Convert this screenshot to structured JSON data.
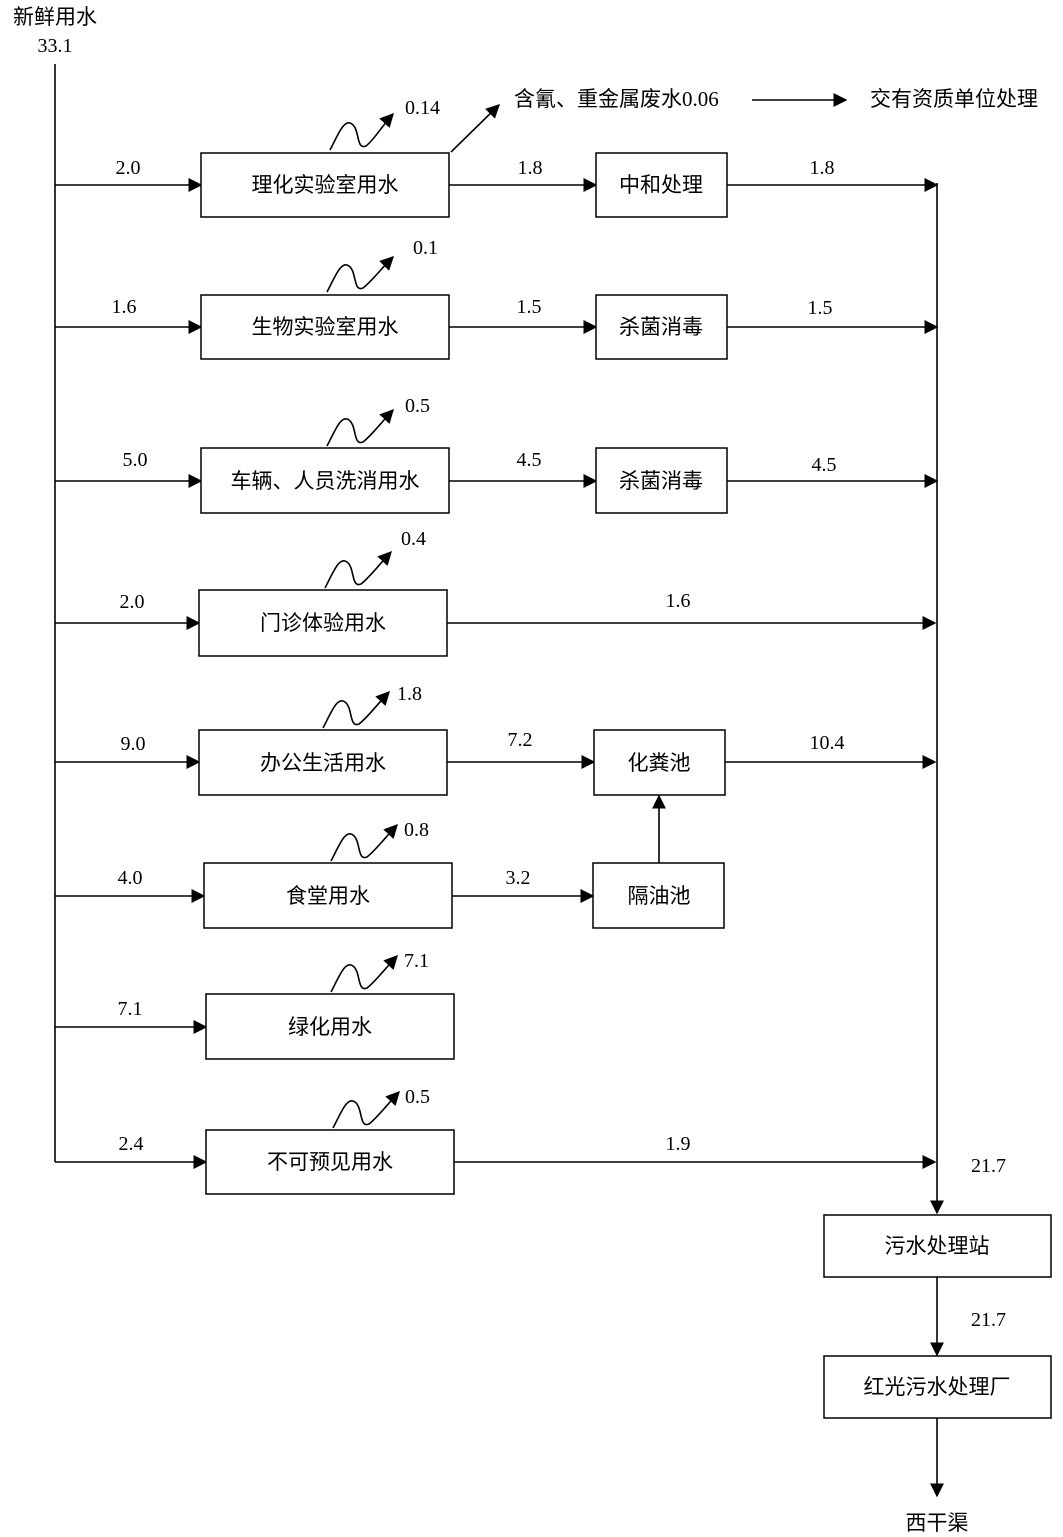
{
  "source": {
    "label": "新鲜用水",
    "value": "33.1"
  },
  "processes": [
    {
      "name": "理化实验室用水",
      "input": "2.0",
      "loss": "0.14",
      "output": "1.8",
      "treatment": "中和处理",
      "treated_output": "1.8"
    },
    {
      "name": "生物实验室用水",
      "input": "1.6",
      "loss": "0.1",
      "output": "1.5",
      "treatment": "杀菌消毒",
      "treated_output": "1.5"
    },
    {
      "name": "车辆、人员洗消用水",
      "input": "5.0",
      "loss": "0.5",
      "output": "4.5",
      "treatment": "杀菌消毒",
      "treated_output": "4.5"
    },
    {
      "name": "门诊体验用水",
      "input": "2.0",
      "loss": "0.4",
      "output": "1.6"
    },
    {
      "name": "办公生活用水",
      "input": "9.0",
      "loss": "1.8",
      "output": "7.2",
      "treatment": "化粪池",
      "treated_output": "10.4"
    },
    {
      "name": "食堂用水",
      "input": "4.0",
      "loss": "0.8",
      "output": "3.2",
      "treatment": "隔油池"
    },
    {
      "name": "绿化用水",
      "input": "7.1",
      "loss": "7.1"
    },
    {
      "name": "不可预见用水",
      "input": "2.4",
      "loss": "0.5",
      "output": "1.9"
    }
  ],
  "hazardous": {
    "label": "含氰、重金属废水0.06",
    "destination": "交有资质单位处理"
  },
  "collector": {
    "total": "21.7"
  },
  "sewage_station": {
    "name": "污水处理站",
    "output": "21.7"
  },
  "municipal_plant": {
    "name": "红光污水处理厂"
  },
  "discharge": {
    "name": "西干渠"
  }
}
